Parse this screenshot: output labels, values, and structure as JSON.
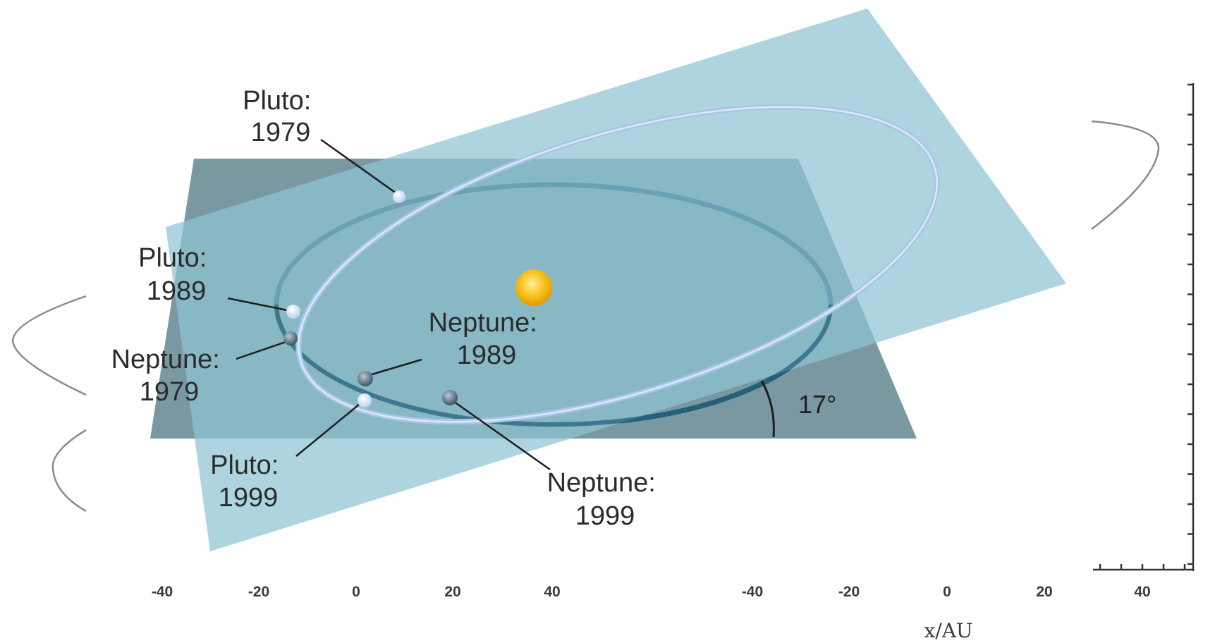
{
  "labels": {
    "pluto_1979": {
      "name": "Pluto:",
      "year": "1979"
    },
    "pluto_1989": {
      "name": "Pluto:",
      "year": "1989"
    },
    "pluto_1999": {
      "name": "Pluto:",
      "year": "1999"
    },
    "neptune_1979": {
      "name": "Neptune:",
      "year": "1979"
    },
    "neptune_1989": {
      "name": "Neptune:",
      "year": "1989"
    },
    "neptune_1999": {
      "name": "Neptune:",
      "year": "1999"
    }
  },
  "inclination_label": "17°",
  "axis": {
    "left_ticks": [
      "-40",
      "-20",
      "0",
      "20",
      "40"
    ],
    "right_ticks": [
      "-40",
      "-20",
      "0",
      "20",
      "40"
    ],
    "xlabel": "x/AU"
  },
  "colors": {
    "ecliptic_plane": "#6f8f99",
    "pluto_plane": "#8fc5d3",
    "neptune_orbit": "#0f4a63",
    "pluto_orbit": "#a9c6e8",
    "sun": "#f5b800"
  }
}
